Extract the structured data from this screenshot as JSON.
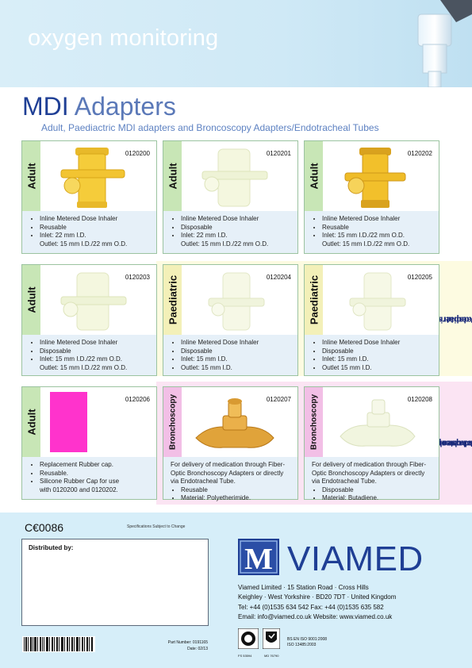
{
  "header": {
    "title": "oxygen monitoring"
  },
  "title": {
    "part1": "MDI",
    "part2": "Adapters"
  },
  "subtitle": "Adult, Paediactric MDI adapters and Broncoscopy Adapters/Endotracheal Tubes",
  "cards": [
    {
      "code": "0120200",
      "side": "Adult",
      "bullets": [
        "Inline Metered Dose Inhaler",
        "Reusable",
        "Inlet: 22 mm I.D."
      ],
      "extra": "Outlet: 15 mm I.D./22 mm O.D."
    },
    {
      "code": "0120201",
      "side": "Adult",
      "bullets": [
        "Inline Metered Dose Inhaler",
        "Disposable",
        "Inlet: 22 mm I.D."
      ],
      "extra": "Outlet: 15 mm I.D./22 mm O.D."
    },
    {
      "code": "0120202",
      "side": "Adult",
      "bullets": [
        "Inline Metered Dose Inhaler",
        "Reusable",
        "Inlet: 15 mm I.D./22 mm O.D."
      ],
      "extra": "Outlet: 15 mm I.D./22 mm O.D."
    },
    {
      "code": "0120203",
      "side": "Adult",
      "bullets": [
        "Inline Metered Dose Inhaler",
        "Disposable",
        "Inlet: 15 mm I.D./22 mm O.D."
      ],
      "extra": "Outlet: 15 mm I.D./22 mm O.D."
    },
    {
      "code": "0120204",
      "side": "Paediatric",
      "bullets": [
        "Inline Metered Dose Inhaler",
        "Disposable",
        "Inlet: 15 mm I.D.",
        "Outlet: 15 mm I.D."
      ]
    },
    {
      "code": "0120205",
      "side": "Paediatric",
      "bullets": [
        "Inline Metered Dose Inhaler",
        "Disposable",
        "Inlet: 15 mm I.D.",
        "Outlet 15 mm I.D."
      ]
    },
    {
      "code": "0120206",
      "side": "Adult",
      "bullets": [
        "Replacement Rubber cap.",
        "Reusable.",
        "Silicone Rubber Cap for use"
      ],
      "extra": "with 0120200 and 0120202."
    },
    {
      "code": "0120207",
      "side": "Bronchoscopy",
      "text": "For delivery of medication through Fiber-Optic Bronchoscopy Adapters or directly via Endotracheal Tube.",
      "bullets": [
        "Reusable",
        "Material: Polyetherimide."
      ]
    },
    {
      "code": "0120208",
      "side": "Bronchoscopy",
      "text": "For delivery of medication through Fiber-Optic Bronchoscopy Adapters or directly via Endotracheal Tube.",
      "bullets": [
        "Disposable",
        "Material: Butadiene."
      ]
    }
  ],
  "bands": {
    "paediatric": [
      "Paediatric",
      "Adapters"
    ],
    "bronchoscopy": [
      "Bronchoscopy or",
      "Endotracheal Tube",
      "Adapters"
    ]
  },
  "footer": {
    "ce": "C€0086",
    "spec_note": "Specifications Subject to Change",
    "distributed_by": "Distributed by:",
    "logo_letter": "M",
    "logo_name": "VIAMED",
    "address_lines": [
      "Viamed Limited · 15 Station Road · Cross Hills",
      "Keighley · West Yorkshire · BD20 7DT · United Kingdom",
      "Tel: +44 (0)1535 634 542     Fax: +44 (0)1535 635 582",
      "Email: info@viamed.co.uk  Website: www.viamed.co.uk"
    ],
    "part_number": "Part Number: 0191165",
    "date": "Date: 02/13",
    "cert_ids": [
      "FS 53594",
      "MD 76790"
    ],
    "iso_lines": [
      "BS EN ISO 9001:2008",
      "ISO 13485:2003"
    ]
  },
  "colors": {
    "brand_blue": "#1f3f95",
    "green_tab": "#c8e6b6",
    "yellow_tab": "#f3f0b8",
    "pink_tab": "#f2bfe6",
    "rubber_cap": "#ff33cc",
    "info_panel": "#e6f0f8"
  }
}
